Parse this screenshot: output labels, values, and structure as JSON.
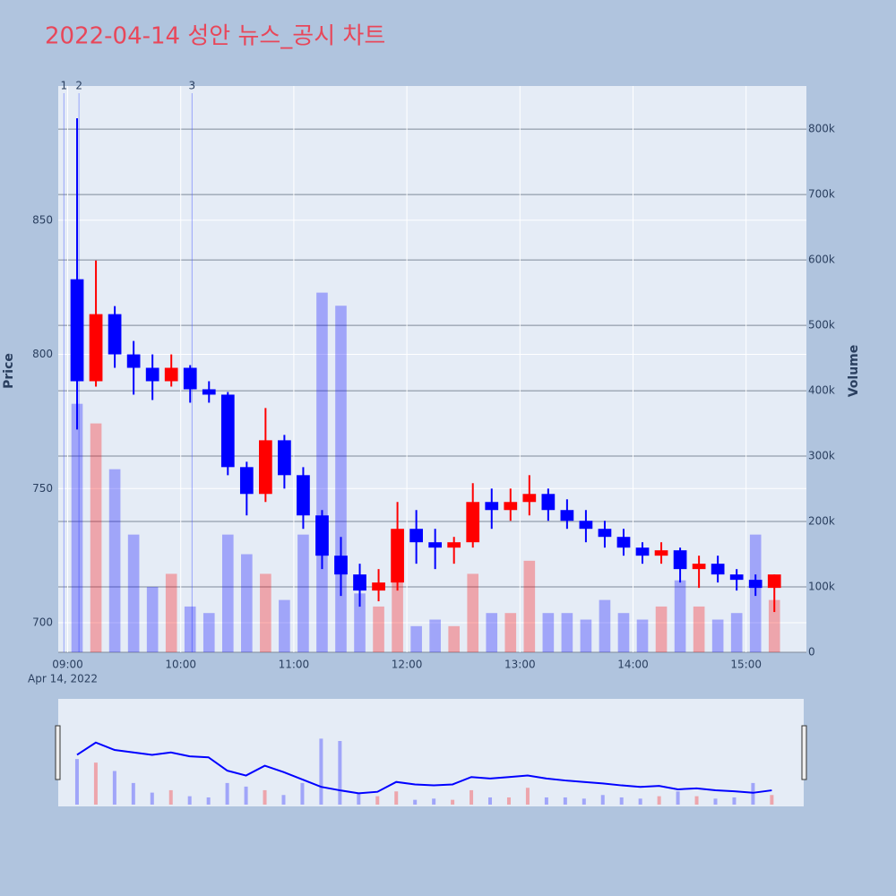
{
  "chart_data": {
    "type": "candlestick",
    "title": "2022-04-14 성안 뉴스_공시 차트",
    "yaxis_label": "Price",
    "y2axis_label": "Volume",
    "x_date_label": "Apr 14, 2022",
    "increasing_color": "#ff0000",
    "decreasing_color": "#0000ff",
    "x": [
      "09:00",
      "09:10",
      "09:20",
      "09:30",
      "09:40",
      "09:50",
      "10:00",
      "10:10",
      "10:20",
      "10:30",
      "10:40",
      "10:50",
      "11:00",
      "11:10",
      "11:20",
      "11:30",
      "11:40",
      "11:50",
      "12:00",
      "12:10",
      "12:20",
      "12:30",
      "12:40",
      "12:50",
      "13:00",
      "13:10",
      "13:20",
      "13:30",
      "13:40",
      "13:50",
      "14:00",
      "14:10",
      "14:20",
      "14:30",
      "14:40",
      "14:50",
      "15:00",
      "15:10"
    ],
    "open": [
      828,
      790,
      815,
      800,
      795,
      790,
      795,
      787,
      785,
      758,
      748,
      768,
      755,
      740,
      725,
      718,
      712,
      715,
      735,
      730,
      728,
      730,
      745,
      742,
      745,
      748,
      742,
      738,
      735,
      732,
      728,
      725,
      727,
      720,
      722,
      718,
      716,
      713
    ],
    "high": [
      888,
      835,
      818,
      805,
      800,
      800,
      796,
      790,
      786,
      760,
      780,
      770,
      758,
      742,
      732,
      722,
      720,
      745,
      742,
      735,
      732,
      752,
      750,
      750,
      755,
      750,
      746,
      742,
      738,
      735,
      730,
      730,
      728,
      725,
      725,
      720,
      718,
      718
    ],
    "low": [
      772,
      788,
      795,
      785,
      783,
      788,
      782,
      782,
      755,
      740,
      745,
      750,
      735,
      720,
      710,
      706,
      708,
      712,
      722,
      720,
      722,
      728,
      735,
      738,
      740,
      738,
      735,
      730,
      728,
      725,
      722,
      722,
      715,
      713,
      715,
      712,
      710,
      704
    ],
    "close": [
      790,
      815,
      800,
      795,
      790,
      795,
      787,
      785,
      758,
      748,
      768,
      755,
      740,
      725,
      718,
      712,
      715,
      735,
      730,
      728,
      730,
      745,
      742,
      745,
      748,
      742,
      738,
      735,
      732,
      728,
      725,
      727,
      720,
      722,
      718,
      716,
      713,
      718
    ],
    "volume": [
      380000,
      350000,
      280000,
      180000,
      100000,
      120000,
      70000,
      60000,
      180000,
      150000,
      120000,
      80000,
      180000,
      550000,
      530000,
      90000,
      70000,
      110000,
      40000,
      50000,
      40000,
      120000,
      60000,
      60000,
      140000,
      60000,
      60000,
      50000,
      80000,
      60000,
      50000,
      70000,
      110000,
      70000,
      50000,
      60000,
      180000,
      80000
    ],
    "xlim": [
      "08:55",
      "15:32"
    ],
    "xticks": [
      "09:00",
      "10:00",
      "11:00",
      "12:00",
      "13:00",
      "14:00",
      "15:00"
    ],
    "ylim": [
      689,
      900
    ],
    "yticks": [
      700,
      750,
      800,
      850
    ],
    "y2lim": [
      0,
      866000
    ],
    "y2ticks": [
      0,
      {
        "value": 100000,
        "label": "100k"
      },
      {
        "value": 200000,
        "label": "200k"
      },
      {
        "value": 300000,
        "label": "300k"
      },
      {
        "value": 400000,
        "label": "400k"
      },
      {
        "value": 500000,
        "label": "500k"
      },
      {
        "value": 600000,
        "label": "600k"
      },
      {
        "value": 700000,
        "label": "700k"
      },
      {
        "value": 800000,
        "label": "800k"
      }
    ],
    "annotations": [
      {
        "x": "08:58",
        "label": "1"
      },
      {
        "x": "09:06",
        "label": "2"
      },
      {
        "x": "10:06",
        "label": "3"
      }
    ],
    "grid": true
  }
}
